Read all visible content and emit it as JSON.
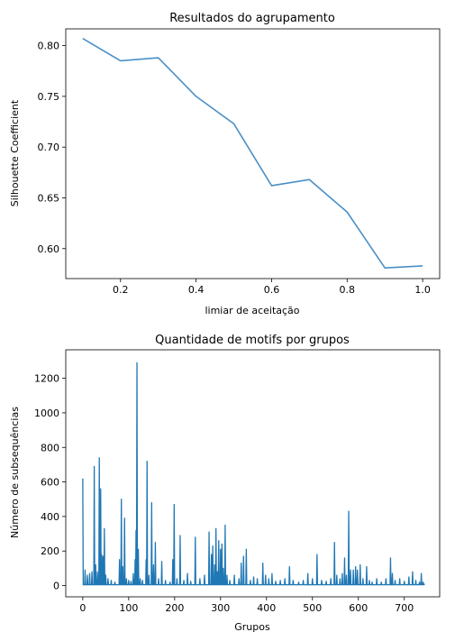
{
  "chart_data": [
    {
      "type": "line",
      "title": "Resultados do agrupamento",
      "xlabel": "limiar de aceitação",
      "ylabel": "Silhouette Coefficient",
      "xlim": [
        0.055,
        1.045
      ],
      "ylim": [
        0.5705,
        0.8165
      ],
      "grid": false,
      "x_ticks": [
        0.2,
        0.4,
        0.6,
        0.8,
        1.0
      ],
      "x_tick_labels": [
        "0.2",
        "0.4",
        "0.6",
        "0.8",
        "1.0"
      ],
      "y_ticks": [
        0.6,
        0.65,
        0.7,
        0.75,
        0.8
      ],
      "y_tick_labels": [
        "0.60",
        "0.65",
        "0.70",
        "0.75",
        "0.80"
      ],
      "color": "#4a90c8",
      "series": [
        {
          "x": [
            0.1,
            0.2,
            0.3,
            0.4,
            0.5,
            0.6,
            0.7,
            0.8,
            0.9,
            1.0
          ],
          "y": [
            0.807,
            0.785,
            0.788,
            0.75,
            0.723,
            0.662,
            0.668,
            0.636,
            0.581,
            0.583
          ]
        }
      ]
    },
    {
      "type": "line",
      "title": "Quantidade de motifs por grupos",
      "xlabel": "Grupos",
      "ylabel": "Número de subsequências",
      "xlim": [
        -37,
        777
      ],
      "ylim": [
        -65,
        1365
      ],
      "grid": false,
      "x_ticks": [
        0,
        100,
        200,
        300,
        400,
        500,
        600,
        700
      ],
      "x_tick_labels": [
        "0",
        "100",
        "200",
        "300",
        "400",
        "500",
        "600",
        "700"
      ],
      "y_ticks": [
        0,
        200,
        400,
        600,
        800,
        1000,
        1200
      ],
      "y_tick_labels": [
        "0",
        "200",
        "400",
        "600",
        "800",
        "1000",
        "1200"
      ],
      "color": "#1f77b4",
      "n_points": 745,
      "baseline": 5,
      "peaks": [
        [
          0,
          620
        ],
        [
          5,
          90
        ],
        [
          10,
          60
        ],
        [
          15,
          70
        ],
        [
          20,
          80
        ],
        [
          25,
          690
        ],
        [
          28,
          120
        ],
        [
          32,
          80
        ],
        [
          36,
          740
        ],
        [
          39,
          560
        ],
        [
          41,
          180
        ],
        [
          44,
          170
        ],
        [
          47,
          330
        ],
        [
          50,
          60
        ],
        [
          55,
          40
        ],
        [
          62,
          30
        ],
        [
          70,
          20
        ],
        [
          80,
          150
        ],
        [
          84,
          500
        ],
        [
          87,
          110
        ],
        [
          91,
          390
        ],
        [
          95,
          40
        ],
        [
          100,
          30
        ],
        [
          105,
          25
        ],
        [
          110,
          70
        ],
        [
          114,
          150
        ],
        [
          116,
          320
        ],
        [
          118,
          1290
        ],
        [
          121,
          210
        ],
        [
          125,
          40
        ],
        [
          130,
          30
        ],
        [
          138,
          150
        ],
        [
          140,
          720
        ],
        [
          144,
          60
        ],
        [
          150,
          480
        ],
        [
          154,
          120
        ],
        [
          158,
          250
        ],
        [
          165,
          40
        ],
        [
          172,
          140
        ],
        [
          180,
          30
        ],
        [
          190,
          20
        ],
        [
          196,
          150
        ],
        [
          199,
          470
        ],
        [
          205,
          40
        ],
        [
          212,
          290
        ],
        [
          220,
          30
        ],
        [
          228,
          70
        ],
        [
          235,
          25
        ],
        [
          245,
          280
        ],
        [
          255,
          40
        ],
        [
          265,
          60
        ],
        [
          275,
          310
        ],
        [
          280,
          180
        ],
        [
          283,
          230
        ],
        [
          287,
          120
        ],
        [
          290,
          330
        ],
        [
          293,
          80
        ],
        [
          296,
          260
        ],
        [
          300,
          210
        ],
        [
          303,
          240
        ],
        [
          306,
          100
        ],
        [
          310,
          350
        ],
        [
          314,
          60
        ],
        [
          320,
          30
        ],
        [
          330,
          60
        ],
        [
          340,
          40
        ],
        [
          345,
          130
        ],
        [
          350,
          170
        ],
        [
          356,
          210
        ],
        [
          365,
          30
        ],
        [
          372,
          50
        ],
        [
          380,
          40
        ],
        [
          392,
          130
        ],
        [
          398,
          60
        ],
        [
          405,
          40
        ],
        [
          412,
          70
        ],
        [
          420,
          25
        ],
        [
          430,
          30
        ],
        [
          440,
          40
        ],
        [
          450,
          110
        ],
        [
          458,
          30
        ],
        [
          470,
          20
        ],
        [
          480,
          30
        ],
        [
          490,
          70
        ],
        [
          500,
          40
        ],
        [
          510,
          180
        ],
        [
          520,
          30
        ],
        [
          530,
          25
        ],
        [
          540,
          40
        ],
        [
          548,
          250
        ],
        [
          553,
          60
        ],
        [
          560,
          40
        ],
        [
          565,
          70
        ],
        [
          570,
          160
        ],
        [
          574,
          60
        ],
        [
          579,
          430
        ],
        [
          583,
          90
        ],
        [
          589,
          90
        ],
        [
          594,
          110
        ],
        [
          598,
          90
        ],
        [
          604,
          120
        ],
        [
          610,
          40
        ],
        [
          618,
          110
        ],
        [
          624,
          30
        ],
        [
          630,
          20
        ],
        [
          640,
          40
        ],
        [
          650,
          20
        ],
        [
          660,
          40
        ],
        [
          670,
          160
        ],
        [
          674,
          70
        ],
        [
          680,
          30
        ],
        [
          690,
          40
        ],
        [
          700,
          25
        ],
        [
          710,
          50
        ],
        [
          718,
          80
        ],
        [
          725,
          30
        ],
        [
          733,
          20
        ],
        [
          737,
          70
        ],
        [
          741,
          20
        ],
        [
          744,
          10
        ]
      ]
    }
  ]
}
